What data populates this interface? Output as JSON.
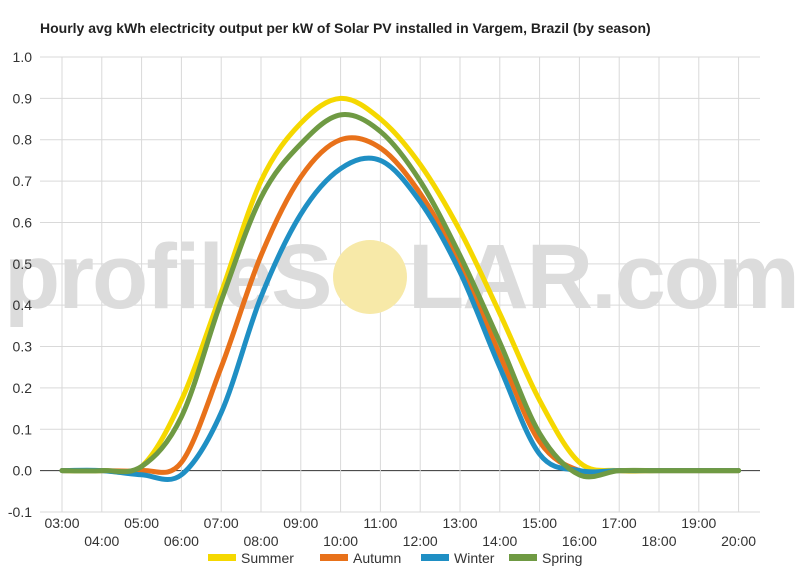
{
  "chart_data": {
    "type": "line",
    "title": "Hourly avg kWh electricity output per kW of Solar PV installed in Vargem, Brazil (by season)",
    "xlabel": "",
    "ylabel": "",
    "x": [
      "03:00",
      "04:00",
      "05:00",
      "06:00",
      "07:00",
      "08:00",
      "09:00",
      "10:00",
      "11:00",
      "12:00",
      "13:00",
      "14:00",
      "15:00",
      "16:00",
      "17:00",
      "18:00",
      "19:00",
      "20:00"
    ],
    "x_top_row": [
      "03:00",
      "05:00",
      "07:00",
      "09:00",
      "11:00",
      "13:00",
      "15:00",
      "17:00",
      "19:00"
    ],
    "x_bottom_row": [
      "04:00",
      "06:00",
      "08:00",
      "10:00",
      "12:00",
      "14:00",
      "16:00",
      "18:00",
      "20:00"
    ],
    "ylim": [
      -0.1,
      1.0
    ],
    "yticks": [
      "1.0",
      "0.9",
      "0.8",
      "0.7",
      "0.6",
      "0.5",
      "0.4",
      "0.3",
      "0.2",
      "0.1",
      "0.0",
      "-0.1"
    ],
    "grid": true,
    "legend_position": "bottom",
    "series": [
      {
        "name": "Summer",
        "color": "#f5d800",
        "values": [
          0,
          0,
          0.01,
          0.17,
          0.43,
          0.7,
          0.84,
          0.9,
          0.85,
          0.74,
          0.58,
          0.38,
          0.17,
          0.02,
          0,
          0,
          0,
          0
        ]
      },
      {
        "name": "Autumn",
        "color": "#e8711a",
        "values": [
          0,
          0,
          0,
          0.02,
          0.25,
          0.52,
          0.71,
          0.8,
          0.78,
          0.67,
          0.5,
          0.28,
          0.07,
          0,
          0,
          0,
          0,
          0
        ]
      },
      {
        "name": "Winter",
        "color": "#1f8fc4",
        "values": [
          0,
          0,
          -0.01,
          -0.01,
          0.14,
          0.42,
          0.62,
          0.73,
          0.75,
          0.65,
          0.48,
          0.25,
          0.04,
          0,
          0,
          0,
          0,
          0
        ]
      },
      {
        "name": "Spring",
        "color": "#6f9a43",
        "values": [
          0,
          0,
          0.01,
          0.13,
          0.41,
          0.66,
          0.79,
          0.86,
          0.82,
          0.7,
          0.52,
          0.31,
          0.09,
          -0.01,
          0,
          0,
          0,
          0
        ]
      }
    ]
  },
  "watermark": {
    "left": "profileS",
    "right": "LAR.com",
    "sun_color": "#f7e9a8"
  }
}
